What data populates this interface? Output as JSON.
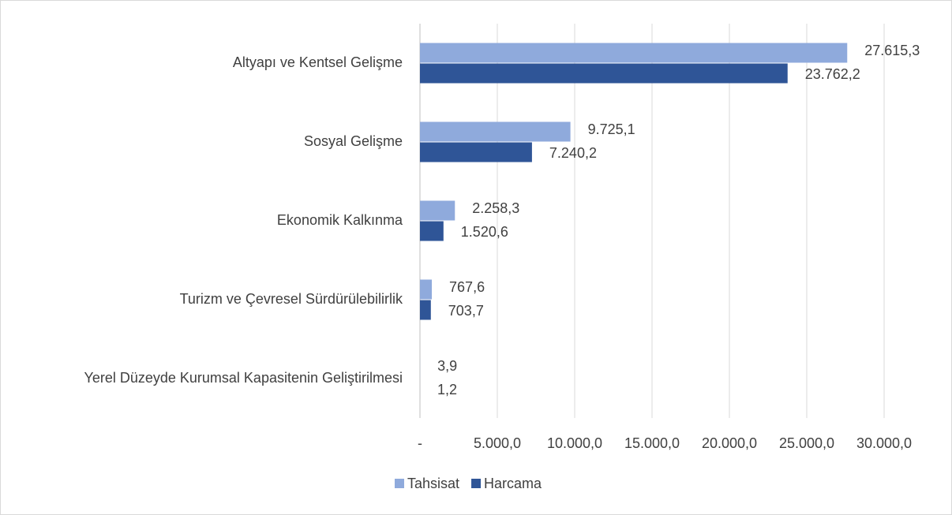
{
  "chart_data": {
    "type": "bar",
    "orientation": "horizontal",
    "categories": [
      "Altyapı ve Kentsel Gelişme",
      "Sosyal Gelişme",
      "Ekonomik Kalkınma",
      "Turizm ve Çevresel Sürdürülebilirlik",
      "Yerel Düzeyde Kurumsal Kapasitenin Geliştirilmesi"
    ],
    "series": [
      {
        "name": "Tahsisat",
        "color": "#8faadc",
        "values": [
          27615.3,
          9725.1,
          2258.3,
          767.6,
          3.9
        ],
        "value_labels": [
          "27.615,3",
          "9.725,1",
          "2.258,3",
          "767,6",
          "3,9"
        ]
      },
      {
        "name": "Harcama",
        "color": "#2f5597",
        "values": [
          23762.2,
          7240.2,
          1520.6,
          703.7,
          1.2
        ],
        "value_labels": [
          "23.762,2",
          "7.240,2",
          "1.520,6",
          "703,7",
          "1,2"
        ]
      }
    ],
    "xlim": [
      0,
      30000
    ],
    "xticks": [
      {
        "value": 0,
        "label": "-"
      },
      {
        "value": 5000,
        "label": "5.000,0"
      },
      {
        "value": 10000,
        "label": "10.000,0"
      },
      {
        "value": 15000,
        "label": "15.000,0"
      },
      {
        "value": 20000,
        "label": "20.000,0"
      },
      {
        "value": 25000,
        "label": "25.000,0"
      },
      {
        "value": 30000,
        "label": "30.000,0"
      }
    ],
    "grid": true,
    "legend": "bottom"
  }
}
